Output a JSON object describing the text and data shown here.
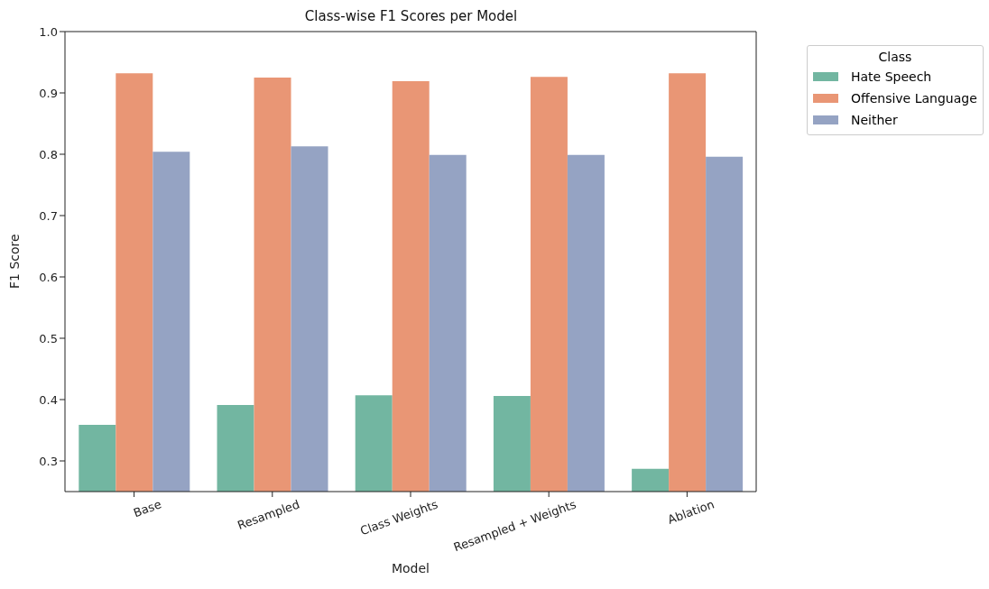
{
  "chart_data": {
    "type": "bar",
    "title": "Class-wise F1 Scores per Model",
    "xlabel": "Model",
    "ylabel": "F1 Score",
    "legend_title": "Class",
    "categories": [
      "Base",
      "Resampled",
      "Class Weights",
      "Resampled + Weights",
      "Ablation"
    ],
    "series": [
      {
        "name": "Hate Speech",
        "color": "#72b6a1",
        "values": [
          0.359,
          0.391,
          0.407,
          0.406,
          0.287
        ]
      },
      {
        "name": "Offensive Language",
        "color": "#e99675",
        "values": [
          0.932,
          0.925,
          0.919,
          0.926,
          0.932
        ]
      },
      {
        "name": "Neither",
        "color": "#95a3c3",
        "values": [
          0.804,
          0.813,
          0.799,
          0.799,
          0.796
        ]
      }
    ],
    "ylim": [
      0.25,
      1.0
    ],
    "yticks": [
      0.3,
      0.4,
      0.5,
      0.6,
      0.7,
      0.8,
      0.9,
      {
        "value": 1,
        "label": "1.0"
      }
    ],
    "grid": false,
    "legend": "top right"
  }
}
